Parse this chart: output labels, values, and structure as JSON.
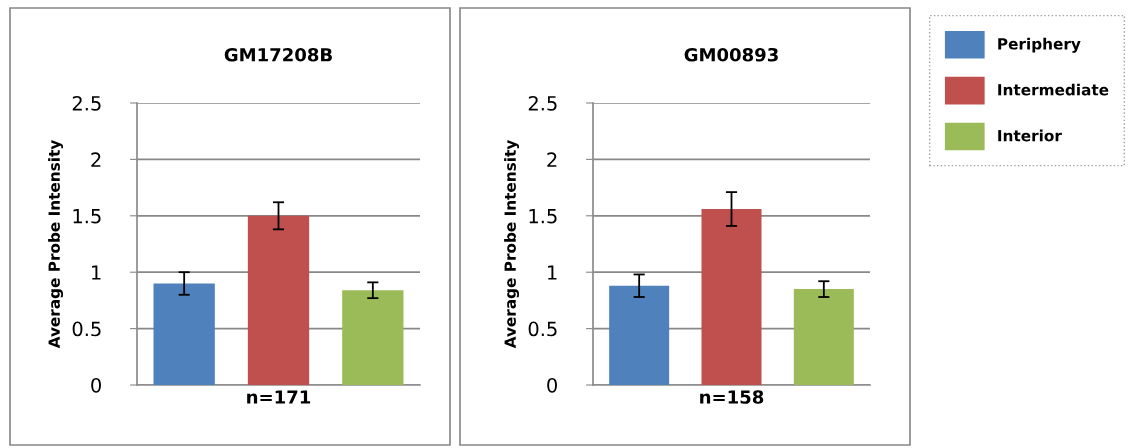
{
  "chart_data": [
    {
      "type": "bar",
      "stacked": true,
      "title": "GM17208B",
      "ylabel": "Average Probe Intensity",
      "categories": [
        null,
        "n=171",
        null
      ],
      "ylim": [
        0,
        2.5
      ],
      "yticks": [
        0,
        0.5,
        1,
        1.5,
        2,
        2.5
      ],
      "grid": "y",
      "legend": false,
      "series": [
        {
          "color": "#4f81bd",
          "values": [
            0.9,
            null,
            null
          ],
          "errors": [
            0.1,
            null,
            null
          ]
        },
        {
          "color": "#c0504d",
          "values": [
            null,
            1.5,
            null
          ],
          "errors": [
            null,
            0.12,
            null
          ]
        },
        {
          "color": "#9bbb59",
          "values": [
            null,
            null,
            0.84
          ],
          "errors": [
            null,
            null,
            0.07
          ]
        }
      ]
    },
    {
      "type": "bar",
      "stacked": true,
      "title": "GM00893",
      "ylabel": "Average Probe Intensity",
      "categories": [
        null,
        "n=158",
        null
      ],
      "ylim": [
        0,
        2.5
      ],
      "yticks": [
        0,
        0.5,
        1,
        1.5,
        2,
        2.5
      ],
      "grid": "y",
      "legend": "right",
      "series": [
        {
          "name": "Periphery",
          "color": "#4f81bd",
          "values": [
            0.88,
            null,
            null
          ],
          "errors": [
            0.1,
            null,
            null
          ]
        },
        {
          "name": "Intermediate",
          "color": "#c0504d",
          "values": [
            null,
            1.56,
            null
          ],
          "errors": [
            null,
            0.15,
            null
          ]
        },
        {
          "name": "Interior",
          "color": "#9bbb59",
          "values": [
            null,
            null,
            0.85
          ],
          "errors": [
            null,
            null,
            0.07
          ]
        }
      ]
    }
  ]
}
